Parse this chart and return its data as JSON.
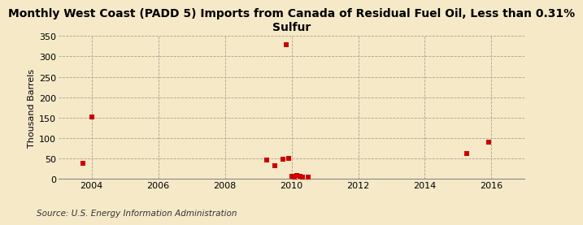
{
  "title": "Monthly West Coast (PADD 5) Imports from Canada of Residual Fuel Oil, Less than 0.31%\nSulfur",
  "ylabel": "Thousand Barrels",
  "source": "Source: U.S. Energy Information Administration",
  "background_color": "#f5e9c8",
  "plot_bg_color": "#f5e9c8",
  "marker_color": "#cc0000",
  "marker_size": 4,
  "xlim": [
    2003.0,
    2017.0
  ],
  "ylim": [
    0,
    350
  ],
  "yticks": [
    0,
    50,
    100,
    150,
    200,
    250,
    300,
    350
  ],
  "xticks": [
    2004,
    2006,
    2008,
    2010,
    2012,
    2014,
    2016
  ],
  "data_points": [
    {
      "year": 2003.75,
      "value": 38
    },
    {
      "year": 2004.0,
      "value": 152
    },
    {
      "year": 2009.25,
      "value": 46
    },
    {
      "year": 2009.5,
      "value": 32
    },
    {
      "year": 2009.75,
      "value": 48
    },
    {
      "year": 2009.917,
      "value": 50
    },
    {
      "year": 2009.833,
      "value": 328
    },
    {
      "year": 2010.0,
      "value": 6
    },
    {
      "year": 2010.083,
      "value": 5
    },
    {
      "year": 2010.167,
      "value": 8
    },
    {
      "year": 2010.25,
      "value": 7
    },
    {
      "year": 2010.333,
      "value": 5
    },
    {
      "year": 2010.5,
      "value": 4
    },
    {
      "year": 2015.25,
      "value": 62
    },
    {
      "year": 2015.917,
      "value": 90
    }
  ],
  "title_fontsize": 10,
  "tick_fontsize": 8,
  "ylabel_fontsize": 8,
  "source_fontsize": 7.5
}
